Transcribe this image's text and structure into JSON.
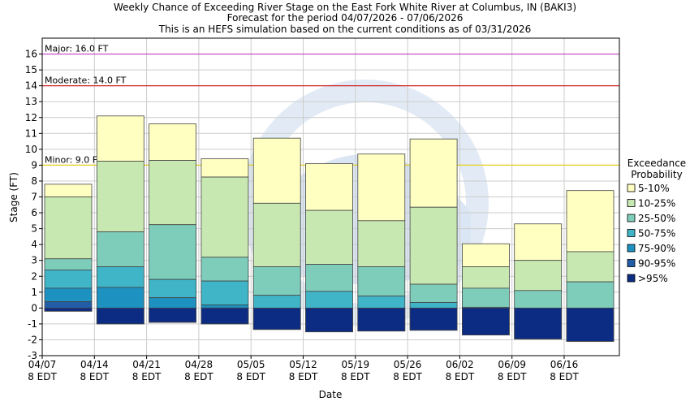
{
  "chart_data": {
    "type": "bar",
    "title": [
      "Weekly Chance of Exceeding River Stage on the East Fork White River at Columbus, IN (BAKI3)",
      "Forecast for the period 04/07/2026 - 07/06/2026",
      "This is an HEFS simulation based on the current conditions as of 03/31/2026"
    ],
    "xlabel": "Date",
    "ylabel": "Stage (FT)",
    "ylim": [
      -3,
      17
    ],
    "yticks": [
      "-3",
      "-2",
      "-1",
      "0",
      "1",
      "2",
      "3",
      "4",
      "5",
      "6",
      "7",
      "8",
      "9",
      "10",
      "11",
      "12",
      "13",
      "14",
      "15",
      "16"
    ],
    "x_ticks": [
      {
        "date": "04/07",
        "time": "8 EDT"
      },
      {
        "date": "04/14",
        "time": "8 EDT"
      },
      {
        "date": "04/21",
        "time": "8 EDT"
      },
      {
        "date": "04/28",
        "time": "8 EDT"
      },
      {
        "date": "05/05",
        "time": "8 EDT"
      },
      {
        "date": "05/12",
        "time": "8 EDT"
      },
      {
        "date": "05/19",
        "time": "8 EDT"
      },
      {
        "date": "05/26",
        "time": "8 EDT"
      },
      {
        "date": "06/02",
        "time": "8 EDT"
      },
      {
        "date": "06/09",
        "time": "8 EDT"
      },
      {
        "date": "06/16",
        "time": "8 EDT"
      }
    ],
    "thresholds": [
      {
        "name": "Major",
        "label": "Major: 16.0 FT",
        "value": 16.0,
        "color": "#c040c0"
      },
      {
        "name": "Moderate",
        "label": "Moderate: 14.0 FT",
        "value": 14.0,
        "color": "#d02020"
      },
      {
        "name": "Minor",
        "label": "Minor: 9.0 FT",
        "value": 9.0,
        "color": "#e8d020"
      }
    ],
    "legend": {
      "title": [
        "Exceedance",
        "Probability"
      ],
      "placement": "right",
      "entries": [
        {
          "label": "5-10%",
          "color": "#ffffc2"
        },
        {
          "label": "10-25%",
          "color": "#c7e8b0"
        },
        {
          "label": "25-50%",
          "color": "#7ecdbb"
        },
        {
          "label": "50-75%",
          "color": "#40b5c8"
        },
        {
          "label": "75-90%",
          "color": "#1d91c0"
        },
        {
          "label": "90-95%",
          "color": "#225ea8"
        },
        {
          "label": ">95%",
          "color": "#0c2c84"
        }
      ]
    },
    "series": [
      {
        "week": "04/07",
        "levels": [
          7.8,
          7.0,
          3.1,
          2.4,
          1.25,
          0.4,
          -0.2
        ]
      },
      {
        "week": "04/14",
        "levels": [
          12.1,
          9.25,
          4.8,
          2.6,
          1.3,
          -0.05,
          -1.0
        ]
      },
      {
        "week": "04/21",
        "levels": [
          11.6,
          9.3,
          5.25,
          1.8,
          0.65,
          -0.05,
          -0.9
        ]
      },
      {
        "week": "04/28",
        "levels": [
          9.4,
          8.25,
          3.2,
          1.7,
          0.2,
          0.0,
          -1.0
        ]
      },
      {
        "week": "05/05",
        "levels": [
          10.7,
          6.6,
          2.6,
          0.8,
          -0.05,
          -0.05,
          -1.35
        ]
      },
      {
        "week": "05/12",
        "levels": [
          9.1,
          6.15,
          2.75,
          1.05,
          -0.05,
          -0.05,
          -1.5
        ]
      },
      {
        "week": "05/19",
        "levels": [
          9.7,
          5.5,
          2.6,
          0.75,
          -0.05,
          -0.05,
          -1.45
        ]
      },
      {
        "week": "05/26",
        "levels": [
          10.65,
          6.35,
          1.5,
          0.35,
          -0.05,
          -0.05,
          -1.4
        ]
      },
      {
        "week": "06/02",
        "levels": [
          4.05,
          2.6,
          1.25,
          0.05,
          -0.05,
          -0.05,
          -1.7
        ]
      },
      {
        "week": "06/09",
        "levels": [
          5.3,
          3.0,
          1.1,
          -0.05,
          -0.05,
          -0.05,
          -1.95
        ]
      },
      {
        "week": "06/16",
        "levels": [
          7.4,
          3.55,
          1.65,
          -0.05,
          -0.05,
          -0.05,
          -2.1
        ]
      }
    ],
    "grid": true
  }
}
